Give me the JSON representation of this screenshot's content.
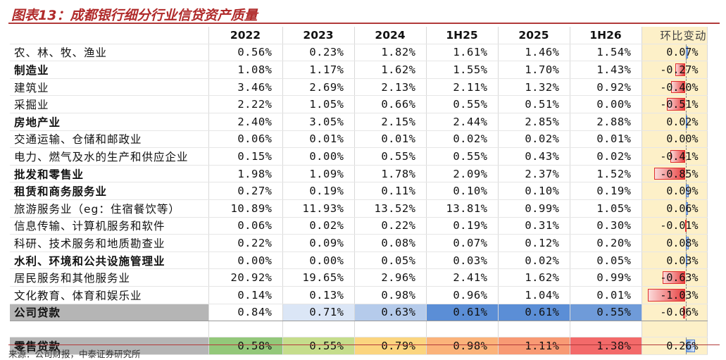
{
  "title": "图表13：成都银行细分行业信贷资产质量",
  "source": "来源：公司财报，中泰证券研究所",
  "columns": [
    "2022",
    "2023",
    "2024",
    "1H25",
    "2025",
    "1H26",
    "环比变动"
  ],
  "rows": [
    {
      "label": "农、林、牧、渔业",
      "bold": false,
      "values": [
        "0.56%",
        "0.23%",
        "1.82%",
        "1.61%",
        "1.46%",
        "1.54%"
      ],
      "change": "0.07%",
      "change_value": 0.07
    },
    {
      "label": "制造业",
      "bold": true,
      "values": [
        "1.08%",
        "1.17%",
        "1.62%",
        "1.55%",
        "1.70%",
        "1.43%"
      ],
      "change": "-0.27%",
      "change_value": -0.27
    },
    {
      "label": "建筑业",
      "bold": false,
      "values": [
        "3.46%",
        "2.69%",
        "2.13%",
        "2.11%",
        "1.32%",
        "0.92%"
      ],
      "change": "-0.40%",
      "change_value": -0.4
    },
    {
      "label": "采掘业",
      "bold": false,
      "values": [
        "2.22%",
        "1.05%",
        "0.66%",
        "0.55%",
        "0.51%",
        "0.00%"
      ],
      "change": "-0.51%",
      "change_value": -0.51
    },
    {
      "label": "房地产业",
      "bold": true,
      "values": [
        "2.40%",
        "3.05%",
        "2.15%",
        "2.44%",
        "2.85%",
        "2.88%"
      ],
      "change": "0.02%",
      "change_value": 0.02
    },
    {
      "label": "交通运输、仓储和邮政业",
      "bold": false,
      "values": [
        "0.06%",
        "0.01%",
        "0.01%",
        "0.02%",
        "0.02%",
        "0.01%"
      ],
      "change": "0.00%",
      "change_value": 0.0
    },
    {
      "label": "电力、燃气及水的生产和供应企业",
      "bold": false,
      "values": [
        "0.15%",
        "0.00%",
        "0.55%",
        "0.55%",
        "0.43%",
        "0.02%"
      ],
      "change": "-0.41%",
      "change_value": -0.41
    },
    {
      "label": "批发和零售业",
      "bold": true,
      "values": [
        "1.98%",
        "1.09%",
        "1.78%",
        "2.09%",
        "2.37%",
        "1.52%"
      ],
      "change": "-0.85%",
      "change_value": -0.85
    },
    {
      "label": "租赁和商务服务业",
      "bold": true,
      "values": [
        "0.27%",
        "0.19%",
        "0.11%",
        "0.10%",
        "0.10%",
        "0.19%"
      ],
      "change": "0.09%",
      "change_value": 0.09
    },
    {
      "label": "旅游服务业（eg：住宿餐饮等）",
      "bold": false,
      "values": [
        "10.89%",
        "11.93%",
        "13.52%",
        "13.81%",
        "0.99%",
        "1.05%"
      ],
      "change": "0.06%",
      "change_value": 0.06
    },
    {
      "label": "信息传输、计算机服务和软件",
      "bold": false,
      "values": [
        "0.06%",
        "0.02%",
        "0.22%",
        "0.19%",
        "0.31%",
        "0.30%"
      ],
      "change": "-0.01%",
      "change_value": -0.01
    },
    {
      "label": "科研、技术服务和地质勘查业",
      "bold": false,
      "values": [
        "0.22%",
        "0.09%",
        "0.08%",
        "0.07%",
        "0.12%",
        "0.20%"
      ],
      "change": "0.08%",
      "change_value": 0.08
    },
    {
      "label": "水利、环境和公共设施管理业",
      "bold": true,
      "values": [
        "0.00%",
        "0.00%",
        "0.05%",
        "0.03%",
        "0.02%",
        "0.05%"
      ],
      "change": "0.03%",
      "change_value": 0.03
    },
    {
      "label": "居民服务和其他服务业",
      "bold": false,
      "values": [
        "20.92%",
        "19.65%",
        "2.96%",
        "2.41%",
        "1.62%",
        "0.99%"
      ],
      "change": "-0.63%",
      "change_value": -0.63
    },
    {
      "label": "文化教育、体育和娱乐业",
      "bold": false,
      "values": [
        "0.14%",
        "0.13%",
        "0.98%",
        "0.96%",
        "1.04%",
        "0.01%"
      ],
      "change": "-1.03%",
      "change_value": -1.03
    }
  ],
  "corporate": {
    "label": "公司贷款",
    "values": [
      "0.84%",
      "0.71%",
      "0.63%",
      "0.61%",
      "0.61%",
      "0.55%"
    ],
    "change": "-0.06%",
    "change_value": -0.06,
    "cell_colors": [
      "#ffffff",
      "#dbe6f6",
      "#b5cbeb",
      "#5b8ed6",
      "#5b8ed6",
      "#6f9bd9"
    ]
  },
  "retail": {
    "label": "零售贷款",
    "values": [
      "0.58%",
      "0.55%",
      "0.79%",
      "0.98%",
      "1.11%",
      "1.38%"
    ],
    "change": "0.26%",
    "change_value": 0.26,
    "cell_colors": [
      "#93c87a",
      "#c5dd8c",
      "#fbd57f",
      "#fbb37a",
      "#f89a74",
      "#f36a6a"
    ]
  }
}
